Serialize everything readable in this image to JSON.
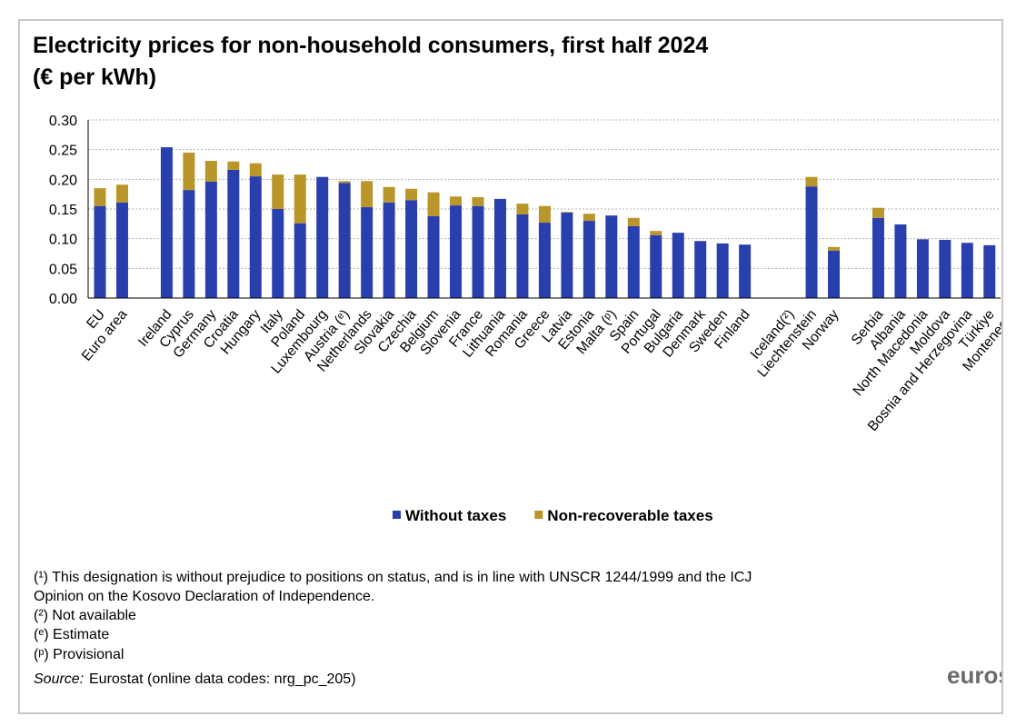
{
  "chart_data": {
    "type": "stacked_bar",
    "title": "Electricity prices for non-household consumers, first half 2024",
    "subtitle": "(€ per kWh)",
    "categories": [
      "EU",
      "Euro area",
      null,
      "Ireland",
      "Cyprus",
      "Germany",
      "Croatia",
      "Hungary",
      "Italy",
      "Poland",
      "Luxembourg",
      "Austria (ᵉ)",
      "Netherlands",
      "Slovakia",
      "Czechia",
      "Belgium",
      "Slovenia",
      "France",
      "Lithuania",
      "Romania",
      "Greece",
      "Latvia",
      "Estonia",
      "Malta (ᵖ)",
      "Spain",
      "Portugal",
      "Bulgaria",
      "Denmark",
      "Sweden",
      "Finland",
      null,
      "Iceland(²)",
      "Liechtenstein",
      "Norway",
      null,
      "Serbia",
      "Albania",
      "North Macedonia",
      "Moldova",
      "Bosnia and Herzegovina",
      "Türkiye",
      "Montenegro"
    ],
    "series": [
      {
        "name": "Without taxes",
        "color": "#2a3fae",
        "values": [
          0.155,
          0.161,
          null,
          0.254,
          0.182,
          0.196,
          0.216,
          0.205,
          0.15,
          0.126,
          0.204,
          0.194,
          0.153,
          0.161,
          0.165,
          0.138,
          0.156,
          0.155,
          0.167,
          0.141,
          0.127,
          0.144,
          0.13,
          0.139,
          0.121,
          0.106,
          0.11,
          0.096,
          0.092,
          0.09,
          null,
          null,
          0.188,
          0.08,
          null,
          0.135,
          0.124,
          0.099,
          0.098,
          0.093,
          0.089,
          null
        ]
      },
      {
        "name": "Non-recoverable taxes",
        "color": "#b8962a",
        "values": [
          0.03,
          0.03,
          null,
          0,
          0.063,
          0.035,
          0.014,
          0.022,
          0.058,
          0.082,
          0,
          0.003,
          0.044,
          0.026,
          0.019,
          0.04,
          0.015,
          0.015,
          0,
          0.018,
          0.028,
          0.001,
          0.012,
          0,
          0.014,
          0.007,
          0,
          0,
          0,
          0,
          null,
          null,
          0.016,
          0.006,
          null,
          0.017,
          0,
          0,
          0,
          0,
          0,
          null
        ]
      }
    ],
    "ylim": [
      0,
      0.3
    ],
    "yticks": [
      {
        "value": 0,
        "label": "0.00"
      },
      0.05,
      {
        "value": 0.1,
        "label": "0.10"
      },
      0.15,
      {
        "value": 0.2,
        "label": "0.20"
      },
      0.25,
      {
        "value": 0.3,
        "label": "0.30"
      }
    ],
    "grid": true,
    "legend": "bottom",
    "footnotes": [
      "(¹) This designation is without prejudice to positions on status, and is in line with UNSCR  1244/1999 and the ICJ",
      "Opinion on the Kosovo Declaration of Independence.",
      "(²) Not available",
      "(ᵉ) Estimate",
      "(ᵖ) Provisional"
    ],
    "source_label": "Source:",
    "source": "Eurostat (online data codes: nrg_pc_205)",
    "logo": "eurostat"
  }
}
